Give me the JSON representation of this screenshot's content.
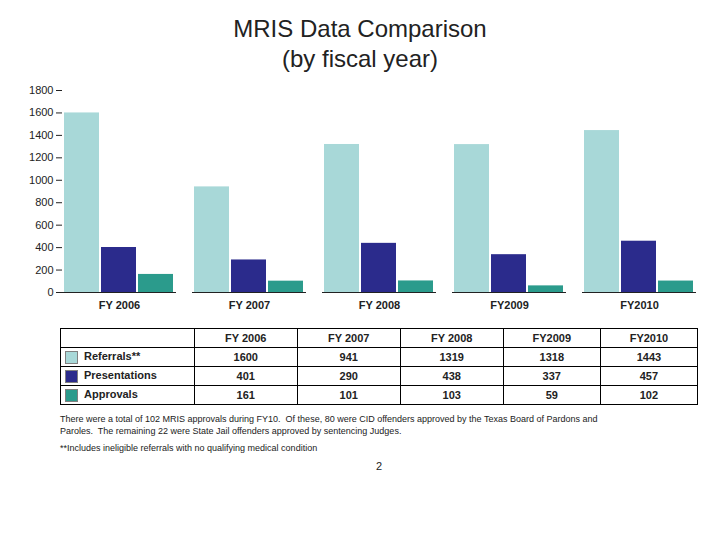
{
  "chart_data": {
    "type": "bar",
    "title": "MRIS Data Comparison",
    "subtitle": "(by fiscal year)",
    "categories": [
      "FY 2006",
      "FY 2007",
      "FY 2008",
      "FY2009",
      "FY2010"
    ],
    "series": [
      {
        "name": "Referrals**",
        "color": "#A8D8D8",
        "values": [
          1600,
          941,
          1319,
          1318,
          1443
        ]
      },
      {
        "name": "Presentations",
        "color": "#2B2B8C",
        "values": [
          401,
          290,
          438,
          337,
          457
        ]
      },
      {
        "name": "Approvals",
        "color": "#2B9B8C",
        "values": [
          161,
          101,
          103,
          59,
          102
        ]
      }
    ],
    "ylim": [
      0,
      1800
    ],
    "yticks": [
      0,
      200,
      400,
      600,
      800,
      1000,
      1200,
      1400,
      1600,
      1800
    ],
    "grid": false,
    "annotations": [
      "There were a total of 102 MRIS approvals during FY10.  Of these, 80 were CID offenders approved by the Texas Board of Pardons and\nParoles.  The remaining 22 were State Jail offenders approved by sentencing Judges.",
      "**Includes ineligible referrals with no qualifying medical condition",
      "2"
    ]
  }
}
